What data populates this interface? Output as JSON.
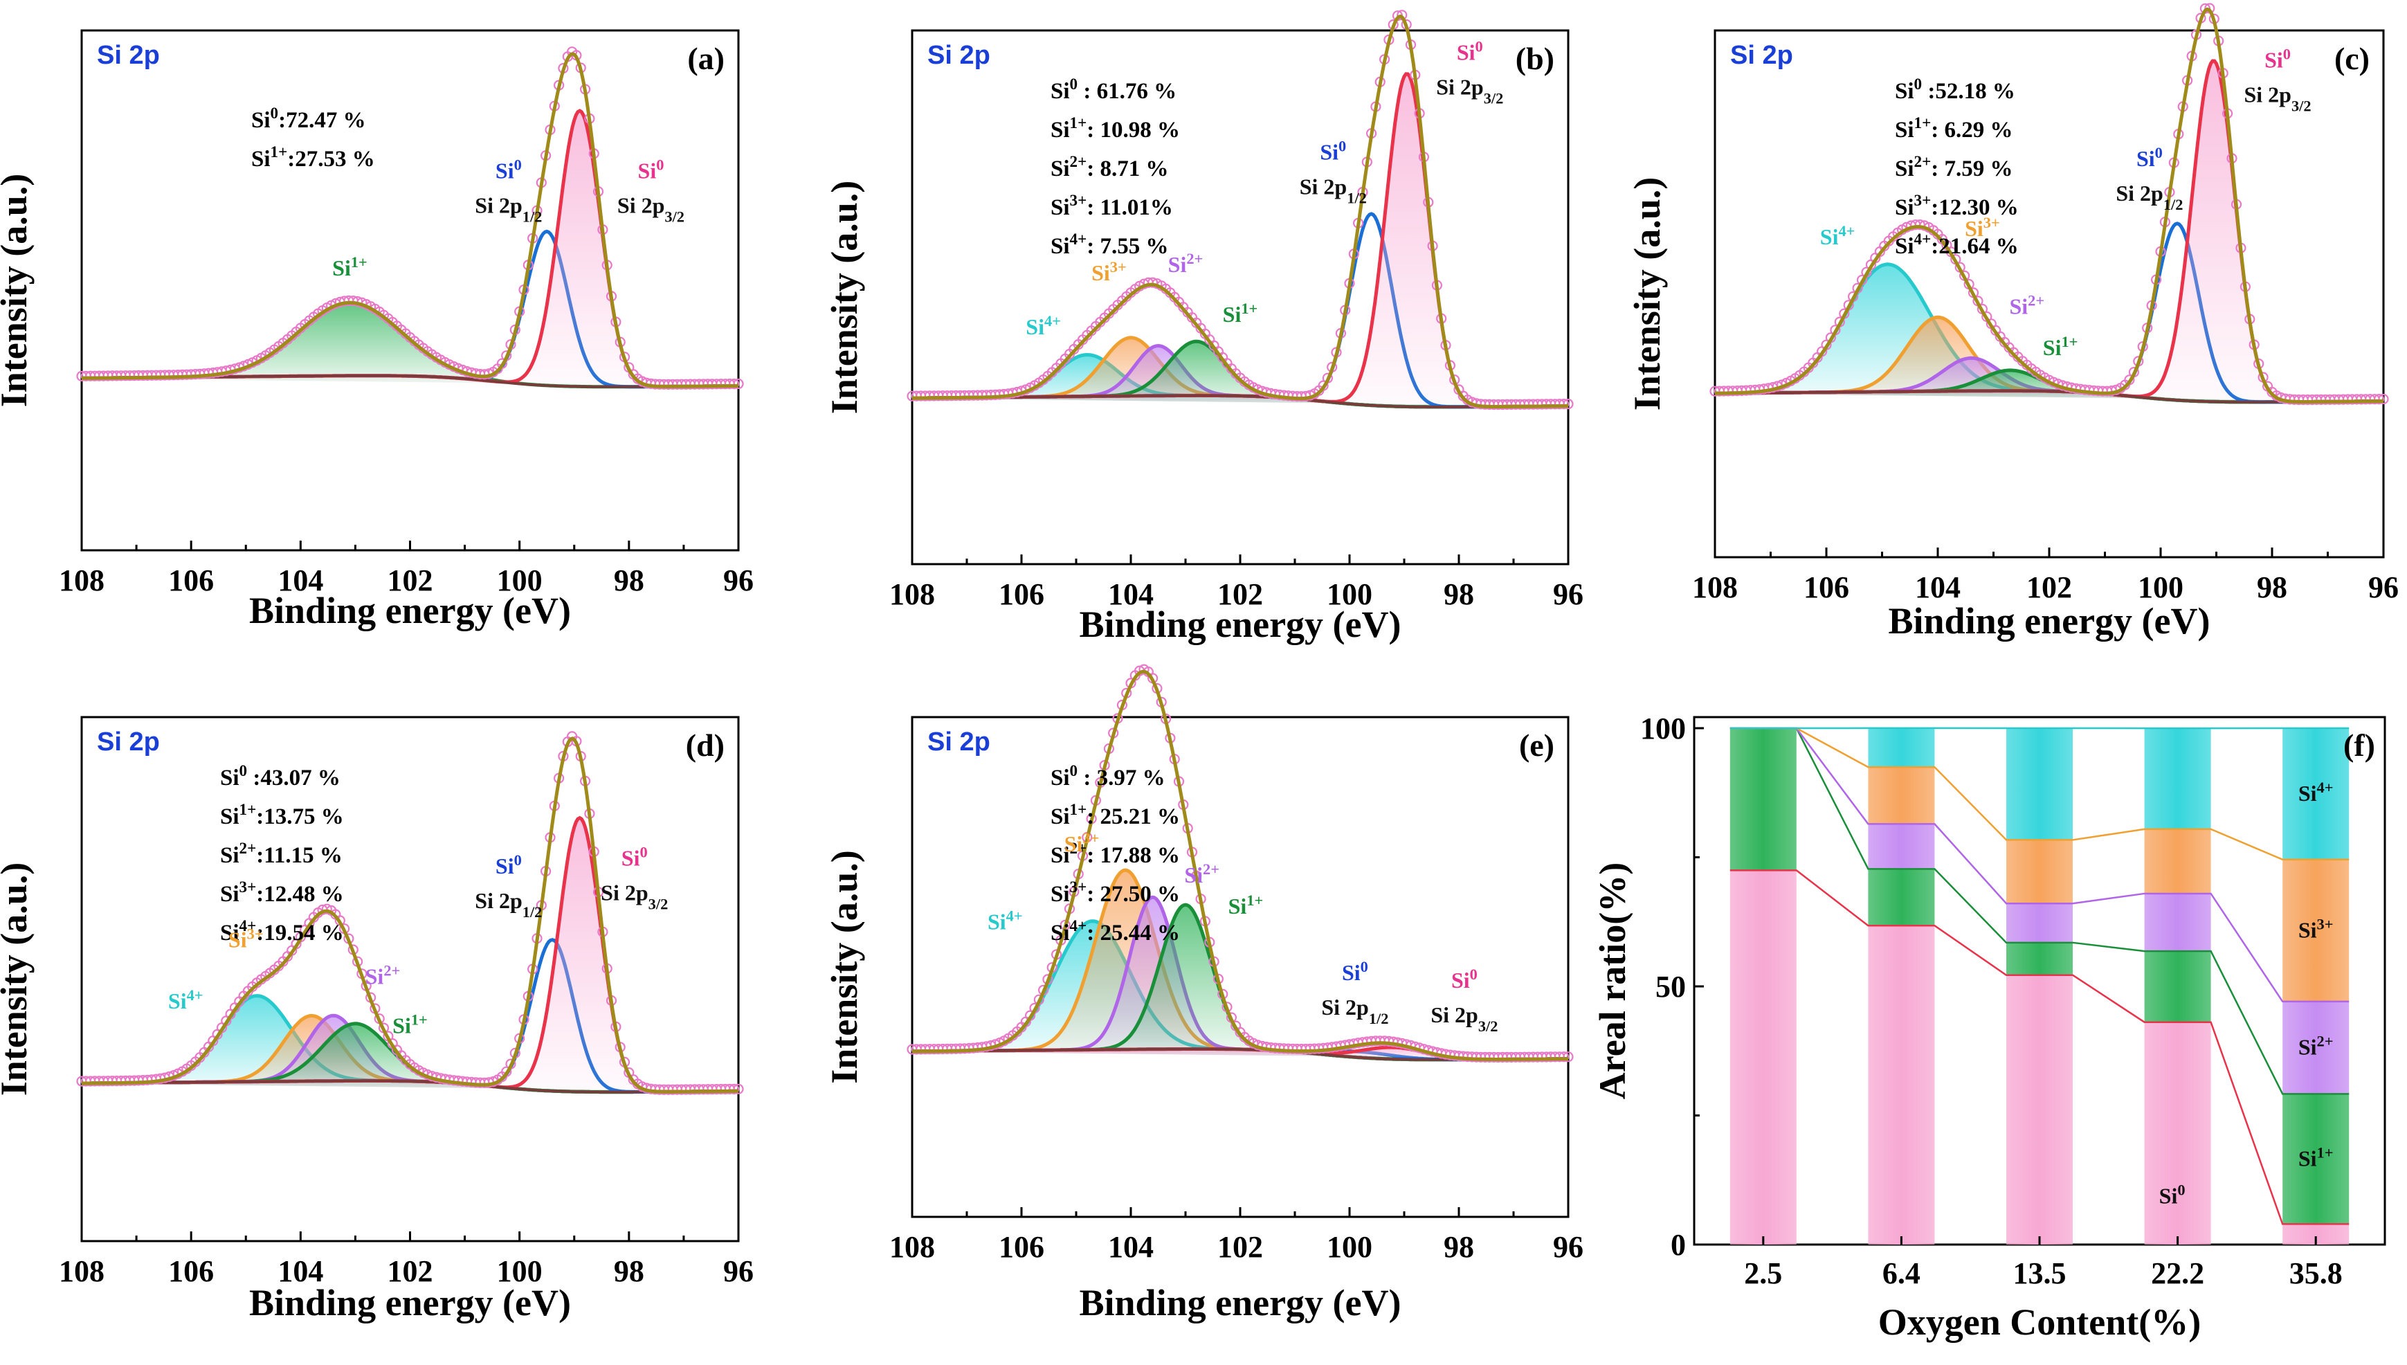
{
  "colors": {
    "si0": "#e8334a",
    "si0_fill": "#f7a8d3",
    "si1": "#1a8f3a",
    "si1_fill": "#2fb35a",
    "si2": "#b065e8",
    "si2_fill": "#c58cf2",
    "si3": "#f0a030",
    "si3_fill": "#f7a35c",
    "si4": "#26c9cc",
    "si4_fill": "#35d6dc",
    "doublet": "#1a6fd6",
    "envelope": "#a08a1a",
    "baseline": "#7a3b3b",
    "raw": "#e879c8",
    "label_blue": "#1a3fd6",
    "label_pink": "#e8338e"
  },
  "common": {
    "core_level": "Si 2p",
    "xlabel": "Binding energy (eV)",
    "ylabel": "Intensity (a.u.)",
    "xticks": [
      "108",
      "106",
      "104",
      "102",
      "100",
      "98",
      "96"
    ]
  },
  "chart_data": [
    {
      "id": "a",
      "type": "line",
      "letter": "(a)",
      "title": "Si 2p",
      "xlim": [
        108,
        96
      ],
      "xreversed": true,
      "stats": [
        {
          "ion": "Si",
          "sup": "0",
          "value": ":72.47 %"
        },
        {
          "ion": "Si",
          "sup": "1+",
          "value": ":27.53 %"
        }
      ],
      "peaks": [
        {
          "state": "Si1+",
          "center_eV": 103.1,
          "amplitude": 0.18,
          "fwhm_eV": 2.2
        },
        {
          "state": "Si0 2p1/2",
          "center_eV": 99.5,
          "amplitude": 0.38,
          "fwhm_eV": 0.9
        },
        {
          "state": "Si0 2p3/2",
          "center_eV": 98.9,
          "amplitude": 0.68,
          "fwhm_eV": 0.9
        }
      ],
      "peak_labels": {
        "si1": "Si",
        "si1_sup": "1+",
        "si0a": "Si",
        "si0a_sup": "0",
        "si0a_line": "Si 2p",
        "si0a_sub": "1/2",
        "si0b": "Si",
        "si0b_sup": "0",
        "si0b_line": "Si 2p",
        "si0b_sub": "3/2"
      }
    },
    {
      "id": "b",
      "type": "line",
      "letter": "(b)",
      "title": "Si 2p",
      "xlim": [
        108,
        96
      ],
      "xreversed": true,
      "stats": [
        {
          "ion": "Si",
          "sup": "0",
          "value": " : 61.76 %"
        },
        {
          "ion": "Si",
          "sup": "1+",
          "value": ": 10.98 %"
        },
        {
          "ion": "Si",
          "sup": "2+",
          "value": ":   8.71 %"
        },
        {
          "ion": "Si",
          "sup": "3+",
          "value": ": 11.01%"
        },
        {
          "ion": "Si",
          "sup": "4+",
          "value": ":   7.55 %"
        }
      ],
      "peaks": [
        {
          "state": "Si4+",
          "center_eV": 104.8,
          "amplitude": 0.1,
          "fwhm_eV": 1.3
        },
        {
          "state": "Si3+",
          "center_eV": 104.0,
          "amplitude": 0.14,
          "fwhm_eV": 1.2
        },
        {
          "state": "Si2+",
          "center_eV": 103.5,
          "amplitude": 0.12,
          "fwhm_eV": 1.0
        },
        {
          "state": "Si1+",
          "center_eV": 102.8,
          "amplitude": 0.13,
          "fwhm_eV": 1.2
        },
        {
          "state": "Si0 2p1/2",
          "center_eV": 99.6,
          "amplitude": 0.46,
          "fwhm_eV": 0.9
        },
        {
          "state": "Si0 2p3/2",
          "center_eV": 98.95,
          "amplitude": 0.8,
          "fwhm_eV": 0.9
        }
      ],
      "peak_labels": {
        "si4": "Si",
        "si4_sup": "4+",
        "si3": "Si",
        "si3_sup": "3+",
        "si2": "Si",
        "si2_sup": "2+",
        "si1": "Si",
        "si1_sup": "1+",
        "si0a": "Si",
        "si0a_sup": "0",
        "si0a_line": "Si 2p",
        "si0a_sub": "1/2",
        "si0b": "Si",
        "si0b_sup": "0",
        "si0b_line": "Si 2p",
        "si0b_sub": "3/2"
      }
    },
    {
      "id": "c",
      "type": "line",
      "letter": "(c)",
      "title": "Si 2p",
      "xlim": [
        108,
        96
      ],
      "xreversed": true,
      "stats": [
        {
          "ion": "Si",
          "sup": "0",
          "value": " :52.18 %"
        },
        {
          "ion": "Si",
          "sup": "1+",
          "value": ": 6.29 %"
        },
        {
          "ion": "Si",
          "sup": "2+",
          "value": ": 7.59 %"
        },
        {
          "ion": "Si",
          "sup": "3+",
          "value": ":12.30 %"
        },
        {
          "ion": "Si",
          "sup": "4+",
          "value": ":21.64 %"
        }
      ],
      "peaks": [
        {
          "state": "Si4+",
          "center_eV": 104.9,
          "amplitude": 0.31,
          "fwhm_eV": 1.8
        },
        {
          "state": "Si3+",
          "center_eV": 104.0,
          "amplitude": 0.18,
          "fwhm_eV": 1.3
        },
        {
          "state": "Si2+",
          "center_eV": 103.4,
          "amplitude": 0.08,
          "fwhm_eV": 1.2
        },
        {
          "state": "Si1+",
          "center_eV": 102.7,
          "amplitude": 0.05,
          "fwhm_eV": 1.2
        },
        {
          "state": "Si0 2p1/2",
          "center_eV": 99.7,
          "amplitude": 0.43,
          "fwhm_eV": 0.9
        },
        {
          "state": "Si0 2p3/2",
          "center_eV": 99.05,
          "amplitude": 0.83,
          "fwhm_eV": 0.9
        }
      ],
      "peak_labels": {
        "si4": "Si",
        "si4_sup": "4+",
        "si3": "Si",
        "si3_sup": "3+",
        "si2": "Si",
        "si2_sup": "2+",
        "si1": "Si",
        "si1_sup": "1+",
        "si0a": "Si",
        "si0a_sup": "0",
        "si0a_line": "Si 2p",
        "si0a_sub": "1/2",
        "si0b": "Si",
        "si0b_sup": "0",
        "si0b_line": "Si 2p",
        "si0b_sub": "3/2"
      }
    },
    {
      "id": "d",
      "type": "line",
      "letter": "(d)",
      "title": "Si 2p",
      "xlim": [
        108,
        96
      ],
      "xreversed": true,
      "stats": [
        {
          "ion": "Si",
          "sup": "0",
          "value": " :43.07 %"
        },
        {
          "ion": "Si",
          "sup": "1+",
          "value": ":13.75 %"
        },
        {
          "ion": "Si",
          "sup": "2+",
          "value": ":11.15 %"
        },
        {
          "ion": "Si",
          "sup": "3+",
          "value": ":12.48 %"
        },
        {
          "ion": "Si",
          "sup": "4+",
          "value": ":19.54 %"
        }
      ],
      "peaks": [
        {
          "state": "Si4+",
          "center_eV": 104.8,
          "amplitude": 0.21,
          "fwhm_eV": 1.5
        },
        {
          "state": "Si3+",
          "center_eV": 103.8,
          "amplitude": 0.16,
          "fwhm_eV": 1.2
        },
        {
          "state": "Si2+",
          "center_eV": 103.4,
          "amplitude": 0.16,
          "fwhm_eV": 1.1
        },
        {
          "state": "Si1+",
          "center_eV": 103.0,
          "amplitude": 0.14,
          "fwhm_eV": 1.4
        },
        {
          "state": "Si0 2p1/2",
          "center_eV": 99.4,
          "amplitude": 0.37,
          "fwhm_eV": 0.9
        },
        {
          "state": "Si0 2p3/2",
          "center_eV": 98.9,
          "amplitude": 0.67,
          "fwhm_eV": 0.9
        }
      ],
      "peak_labels": {
        "si4": "Si",
        "si4_sup": "4+",
        "si3": "Si",
        "si3_sup": "3+",
        "si2": "Si",
        "si2_sup": "2+",
        "si1": "Si",
        "si1_sup": "1+",
        "si0a": "Si",
        "si0a_sup": "0",
        "si0a_line": "Si 2p",
        "si0a_sub": "1/2",
        "si0b": "Si",
        "si0b_sup": "0",
        "si0b_line": "Si 2p",
        "si0b_sub": "3/2"
      }
    },
    {
      "id": "e",
      "type": "line",
      "letter": "(e)",
      "title": "Si 2p",
      "xlim": [
        108,
        96
      ],
      "xreversed": true,
      "stats": [
        {
          "ion": "Si",
          "sup": "0",
          "value": " :  3.97 %"
        },
        {
          "ion": "Si",
          "sup": "1+",
          "value": ": 25.21 %"
        },
        {
          "ion": "Si",
          "sup": "2+",
          "value": ": 17.88 %"
        },
        {
          "ion": "Si",
          "sup": "3+",
          "value": ": 27.50 %"
        },
        {
          "ion": "Si",
          "sup": "4+",
          "value": ": 25.44 %"
        }
      ],
      "peaks": [
        {
          "state": "Si4+",
          "center_eV": 104.7,
          "amplitude": 0.33,
          "fwhm_eV": 1.6
        },
        {
          "state": "Si3+",
          "center_eV": 104.1,
          "amplitude": 0.46,
          "fwhm_eV": 1.3
        },
        {
          "state": "Si2+",
          "center_eV": 103.6,
          "amplitude": 0.39,
          "fwhm_eV": 1.0
        },
        {
          "state": "Si1+",
          "center_eV": 103.0,
          "amplitude": 0.37,
          "fwhm_eV": 1.1
        },
        {
          "state": "Si0 2p1/2",
          "center_eV": 99.8,
          "amplitude": 0.015,
          "fwhm_eV": 1.4
        },
        {
          "state": "Si0 2p3/2",
          "center_eV": 99.2,
          "amplitude": 0.03,
          "fwhm_eV": 1.4
        }
      ],
      "peak_labels": {
        "si4": "Si",
        "si4_sup": "4+",
        "si3": "Si",
        "si3_sup": "3+",
        "si2": "Si",
        "si2_sup": "2+",
        "si1": "Si",
        "si1_sup": "1+",
        "si0a": "Si",
        "si0a_sup": "0",
        "si0a_line": "Si 2p",
        "si0a_sub": "1/2",
        "si0b": "Si",
        "si0b_sup": "0",
        "si0b_line": "Si 2p",
        "si0b_sub": "3/2"
      }
    },
    {
      "id": "f",
      "type": "bar",
      "letter": "(f)",
      "xlabel": "Oxygen Content(%)",
      "ylabel": "Areal ratio(%)",
      "ylim": [
        0,
        100
      ],
      "yticks": [
        "0",
        "50",
        "100"
      ],
      "categories": [
        "2.5",
        "6.4",
        "13.5",
        "22.2",
        "35.8"
      ],
      "series": [
        {
          "name": "Si0",
          "values": [
            72.47,
            61.76,
            52.18,
            43.07,
            3.97
          ]
        },
        {
          "name": "Si1+",
          "values": [
            27.53,
            10.98,
            6.29,
            13.75,
            25.21
          ]
        },
        {
          "name": "Si2+",
          "values": [
            0,
            8.71,
            7.59,
            11.15,
            17.88
          ]
        },
        {
          "name": "Si3+",
          "values": [
            0,
            11.01,
            12.3,
            12.48,
            27.5
          ]
        },
        {
          "name": "Si4+",
          "values": [
            0,
            7.55,
            21.64,
            19.54,
            25.44
          ]
        }
      ],
      "in_bar_labels": [
        {
          "ion": "Si",
          "sup": "4+"
        },
        {
          "ion": "Si",
          "sup": "3+"
        },
        {
          "ion": "Si",
          "sup": "2+"
        },
        {
          "ion": "Si",
          "sup": "1+"
        },
        {
          "ion": "Si",
          "sup": "0"
        }
      ]
    }
  ]
}
